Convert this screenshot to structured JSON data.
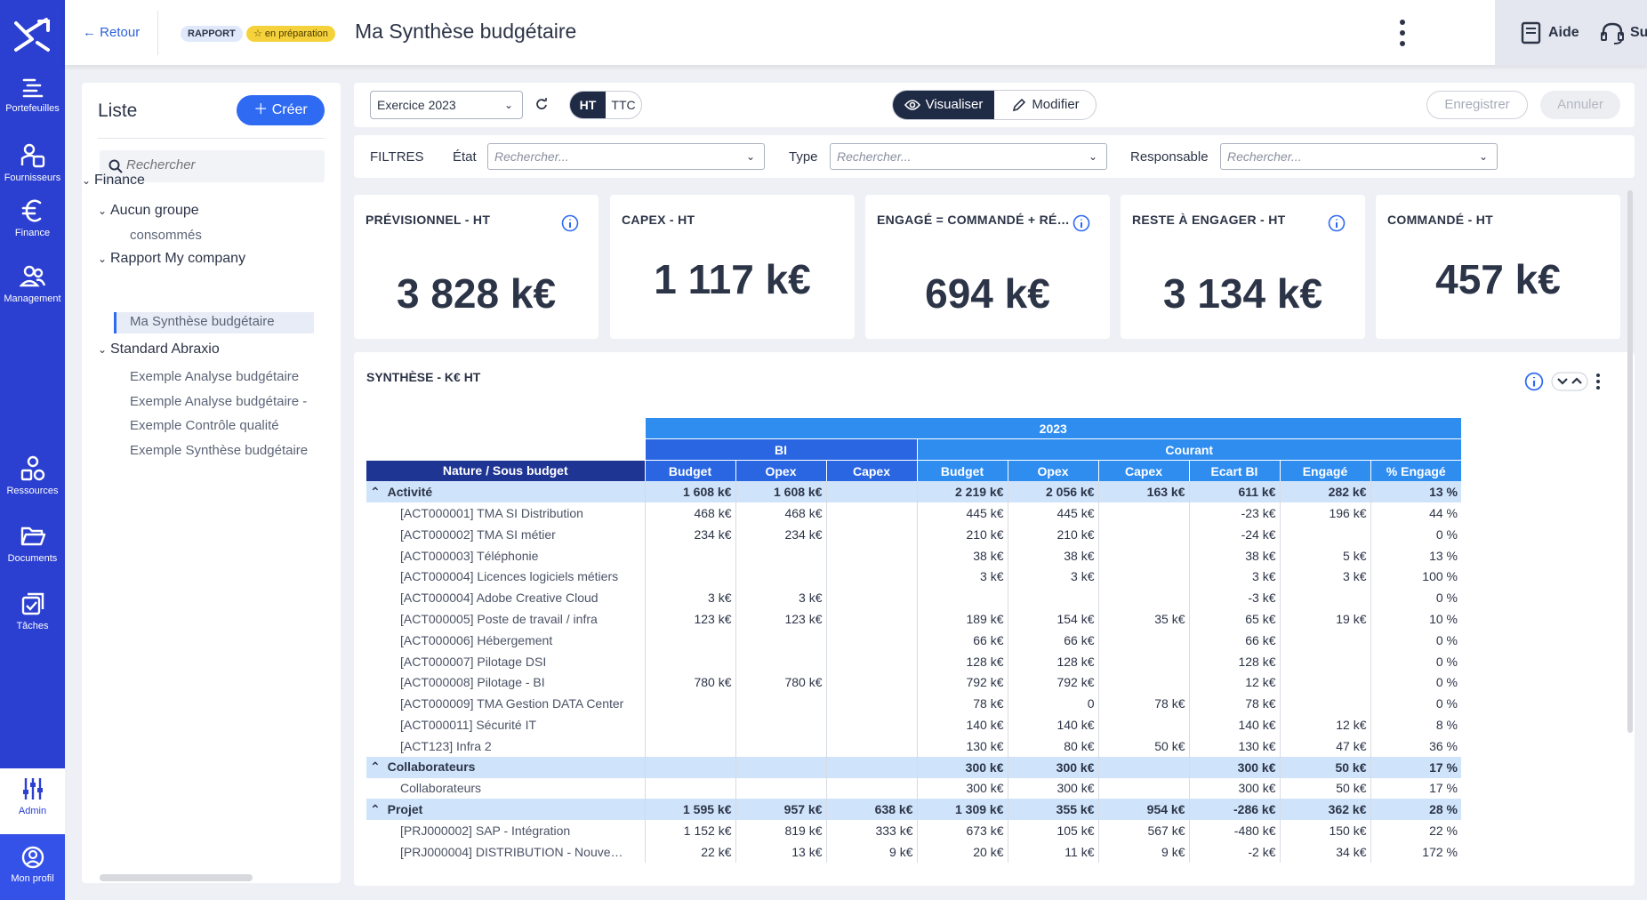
{
  "nav": {
    "items": [
      {
        "label": "Portefeuilles",
        "icon": "portfolio-icon"
      },
      {
        "label": "Fournisseurs",
        "icon": "suppliers-icon"
      },
      {
        "label": "Finance",
        "icon": "euro-icon"
      },
      {
        "label": "Management",
        "icon": "people-icon"
      },
      {
        "label": "Ressources",
        "icon": "resources-icon"
      },
      {
        "label": "Documents",
        "icon": "folder-icon"
      },
      {
        "label": "Tâches",
        "icon": "tasks-icon"
      },
      {
        "label": "Admin",
        "icon": "sliders-icon"
      },
      {
        "label": "Mon profil",
        "icon": "profile-icon"
      }
    ]
  },
  "header": {
    "back": "Retour",
    "badge_type": "RAPPORT",
    "badge_status": "☆ en préparation",
    "title": "Ma Synthèse budgétaire",
    "help": "Aide",
    "support": "Support"
  },
  "list": {
    "title": "Liste",
    "create": "Créer",
    "search_placeholder": "Rechercher",
    "tree": [
      {
        "label": "Finance",
        "level": 0,
        "expanded": true
      },
      {
        "label": "Aucun groupe",
        "level": 1,
        "expanded": true
      },
      {
        "label": "consommés",
        "level": 2
      },
      {
        "label": "Rapport My company",
        "level": 1,
        "expanded": true
      },
      {
        "label": "Ma Synthèse budgétaire",
        "level": 2,
        "selected": true
      },
      {
        "label": "Standard Abraxio",
        "level": 1,
        "expanded": true
      },
      {
        "label": "Exemple Analyse budgétaire",
        "level": 2
      },
      {
        "label": "Exemple Analyse budgétaire -",
        "level": 2
      },
      {
        "label": "Exemple Contrôle qualité",
        "level": 2
      },
      {
        "label": "Exemple Synthèse budgétaire",
        "level": 2
      }
    ]
  },
  "toolbar": {
    "exercise": "Exercice 2023",
    "ht": "HT",
    "ttc": "TTC",
    "view": "Visualiser",
    "edit": "Modifier",
    "save": "Enregistrer",
    "cancel": "Annuler"
  },
  "filters": {
    "label": "FILTRES",
    "state_label": "État",
    "type_label": "Type",
    "owner_label": "Responsable",
    "placeholder": "Rechercher..."
  },
  "kpis": [
    {
      "label": "PRÉVISIONNEL  -  HT",
      "value": "3 828 k€",
      "info": true
    },
    {
      "label": "CAPEX  -  HT",
      "value": "1 117 k€",
      "info": false
    },
    {
      "label": "ENGAGÉ = COMMANDÉ + RÉ…",
      "value": "694 k€",
      "info": true
    },
    {
      "label": "RESTE À ENGAGER  -  HT",
      "value": "3 134 k€",
      "info": true
    },
    {
      "label": "COMMANDÉ  -  HT",
      "value": "457 k€",
      "info": false
    }
  ],
  "synthese": {
    "title": "SYNTHÈSE  -  K€ HT",
    "year": "2023",
    "group_bi": "BI",
    "group_courant": "Courant",
    "columns": [
      "Nature / Sous budget",
      "Budget",
      "Opex",
      "Capex",
      "Budget",
      "Opex",
      "Capex",
      "Ecart BI",
      "Engagé",
      "% Engagé"
    ],
    "rows": [
      {
        "type": "group",
        "cells": [
          "Activité",
          "1 608 k€",
          "1 608 k€",
          "",
          "2 219 k€",
          "2 056 k€",
          "163 k€",
          "611 k€",
          "282 k€",
          "13 %"
        ]
      },
      {
        "type": "row",
        "cells": [
          "[ACT000001] TMA SI Distribution",
          "468 k€",
          "468 k€",
          "",
          "445 k€",
          "445 k€",
          "",
          "-23 k€",
          "196 k€",
          "44 %"
        ]
      },
      {
        "type": "row",
        "cells": [
          "[ACT000002] TMA SI métier",
          "234 k€",
          "234 k€",
          "",
          "210 k€",
          "210 k€",
          "",
          "-24 k€",
          "",
          "0 %"
        ]
      },
      {
        "type": "row",
        "cells": [
          "[ACT000003] Téléphonie",
          "",
          "",
          "",
          "38 k€",
          "38 k€",
          "",
          "38 k€",
          "5 k€",
          "13 %"
        ]
      },
      {
        "type": "row",
        "cells": [
          "[ACT000004] Licences logiciels métiers",
          "",
          "",
          "",
          "3 k€",
          "3 k€",
          "",
          "3 k€",
          "3 k€",
          "100 %"
        ]
      },
      {
        "type": "row",
        "cells": [
          "[ACT000004] Adobe Creative Cloud",
          "3 k€",
          "3 k€",
          "",
          "",
          "",
          "",
          "-3 k€",
          "",
          "0 %"
        ]
      },
      {
        "type": "row",
        "cells": [
          "[ACT000005] Poste de travail / infra",
          "123 k€",
          "123 k€",
          "",
          "189 k€",
          "154 k€",
          "35 k€",
          "65 k€",
          "19 k€",
          "10 %"
        ]
      },
      {
        "type": "row",
        "cells": [
          "[ACT000006] Hébergement",
          "",
          "",
          "",
          "66 k€",
          "66 k€",
          "",
          "66 k€",
          "",
          "0 %"
        ]
      },
      {
        "type": "row",
        "cells": [
          "[ACT000007] Pilotage DSI",
          "",
          "",
          "",
          "128 k€",
          "128 k€",
          "",
          "128 k€",
          "",
          "0 %"
        ]
      },
      {
        "type": "row",
        "cells": [
          "[ACT000008] Pilotage - BI",
          "780 k€",
          "780 k€",
          "",
          "792 k€",
          "792 k€",
          "",
          "12 k€",
          "",
          "0 %"
        ]
      },
      {
        "type": "row",
        "cells": [
          "[ACT000009] TMA Gestion DATA Center",
          "",
          "",
          "",
          "78 k€",
          "0",
          "78 k€",
          "78 k€",
          "",
          "0 %"
        ]
      },
      {
        "type": "row",
        "cells": [
          "[ACT000011] Sécurité IT",
          "",
          "",
          "",
          "140 k€",
          "140 k€",
          "",
          "140 k€",
          "12 k€",
          "8 %"
        ]
      },
      {
        "type": "row",
        "cells": [
          "[ACT123] Infra 2",
          "",
          "",
          "",
          "130 k€",
          "80 k€",
          "50 k€",
          "130 k€",
          "47 k€",
          "36 %"
        ]
      },
      {
        "type": "group",
        "cells": [
          "Collaborateurs",
          "",
          "",
          "",
          "300 k€",
          "300 k€",
          "",
          "300 k€",
          "50 k€",
          "17 %"
        ]
      },
      {
        "type": "row",
        "cells": [
          "Collaborateurs",
          "",
          "",
          "",
          "300 k€",
          "300 k€",
          "",
          "300 k€",
          "50 k€",
          "17 %"
        ]
      },
      {
        "type": "group",
        "cells": [
          "Projet",
          "1 595 k€",
          "957 k€",
          "638 k€",
          "1 309 k€",
          "355 k€",
          "954 k€",
          "-286 k€",
          "362 k€",
          "28 %"
        ]
      },
      {
        "type": "row",
        "cells": [
          "[PRJ000002] SAP - Intégration",
          "1 152 k€",
          "819 k€",
          "333 k€",
          "673 k€",
          "105 k€",
          "567 k€",
          "-480 k€",
          "150 k€",
          "22 %"
        ]
      },
      {
        "type": "row",
        "cells": [
          "[PRJ000004] DISTRIBUTION - Nouve…",
          "22 k€",
          "13 k€",
          "9 k€",
          "20 k€",
          "11 k€",
          "9 k€",
          "-2 k€",
          "34 k€",
          "172 %"
        ]
      }
    ]
  }
}
